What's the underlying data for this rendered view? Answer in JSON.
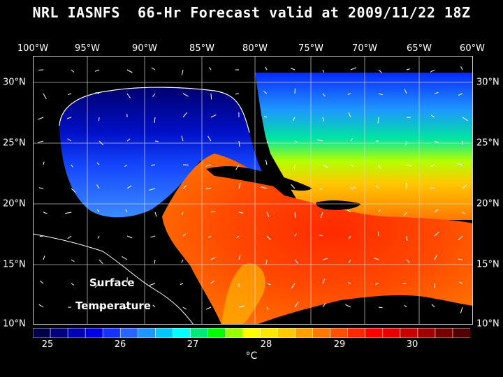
{
  "header": {
    "title": "NRL IASNFS  66-Hr Forecast valid at 2009/11/22 18Z"
  },
  "axes": {
    "lon_labels": [
      "100°W",
      "95°W",
      "90°W",
      "85°W",
      "80°W",
      "75°W",
      "70°W",
      "65°W",
      "60°W"
    ],
    "lat_labels": [
      "30°N",
      "25°N",
      "20°N",
      "15°N",
      "10°N"
    ]
  },
  "overlay": {
    "line1": "Surface",
    "line2": "Temperature"
  },
  "colorbar": {
    "ticks": [
      "25",
      "26",
      "27",
      "28",
      "29",
      "30"
    ],
    "units": "°C",
    "colors": [
      "#00004a",
      "#000080",
      "#0000b4",
      "#0000e6",
      "#1432ff",
      "#2864ff",
      "#1e96ff",
      "#00c8ff",
      "#00ffff",
      "#00e678",
      "#00ff00",
      "#96ff00",
      "#ffff00",
      "#ffe600",
      "#ffc800",
      "#ffa000",
      "#ff7800",
      "#ff5000",
      "#ff2800",
      "#ff0000",
      "#e60000",
      "#c80000",
      "#a00000",
      "#780000",
      "#500000"
    ]
  },
  "map_data": {
    "lon_range": [
      -100,
      -60
    ],
    "lat_range": [
      10,
      31
    ],
    "sst_regions": [
      {
        "name": "northern-gulf-cold",
        "temp": "#00008c"
      },
      {
        "name": "gulf-mid",
        "temp": "#0a32ff"
      },
      {
        "name": "gulf-south",
        "temp": "#2a7bff"
      },
      {
        "name": "atlantic-north",
        "temp": "#1e96ff"
      },
      {
        "name": "atlantic-green",
        "temp": "#00e678"
      },
      {
        "name": "caribbean-warm",
        "temp": "#ff5a00"
      },
      {
        "name": "caribbean-hot",
        "temp": "#ff2800"
      }
    ]
  }
}
